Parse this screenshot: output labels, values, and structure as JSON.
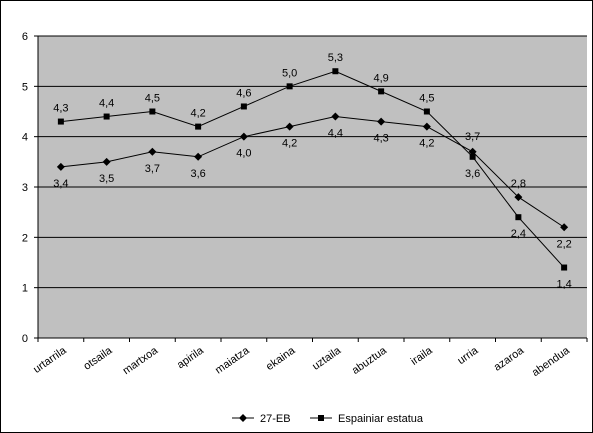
{
  "chart_data": {
    "type": "line",
    "categories": [
      "urtarrila",
      "otsaila",
      "martxoa",
      "apirila",
      "maiatza",
      "ekaina",
      "uztaila",
      "abuztua",
      "iraila",
      "urria",
      "azaroa",
      "abendua"
    ],
    "series": [
      {
        "name": "27-EB",
        "marker": "diamond",
        "values": [
          3.4,
          3.5,
          3.7,
          3.6,
          4.0,
          4.2,
          4.4,
          4.3,
          4.2,
          3.7,
          2.8,
          2.2
        ],
        "labels": [
          "3,4",
          "3,5",
          "3,7",
          "3,6",
          "4,0",
          "4,2",
          "4,4",
          "4,3",
          "4,2",
          "3,7",
          "2,8",
          "2,2"
        ]
      },
      {
        "name": "Espainiar estatua",
        "marker": "square",
        "values": [
          4.3,
          4.4,
          4.5,
          4.2,
          4.6,
          5.0,
          5.3,
          4.9,
          4.5,
          3.6,
          2.4,
          1.4
        ],
        "labels": [
          "4,3",
          "4,4",
          "4,5",
          "4,2",
          "4,6",
          "5,0",
          "5,3",
          "4,9",
          "4,5",
          "3,6",
          "2,4",
          "1,4"
        ]
      }
    ],
    "ylim": [
      0,
      6
    ],
    "yticks": [
      "0",
      "1",
      "2",
      "3",
      "4",
      "5",
      "6"
    ],
    "grid": true,
    "legend": "bottom",
    "colors": {
      "plot_background": "#c0c0c0",
      "gridline": "#000000",
      "line": "#000000"
    }
  }
}
